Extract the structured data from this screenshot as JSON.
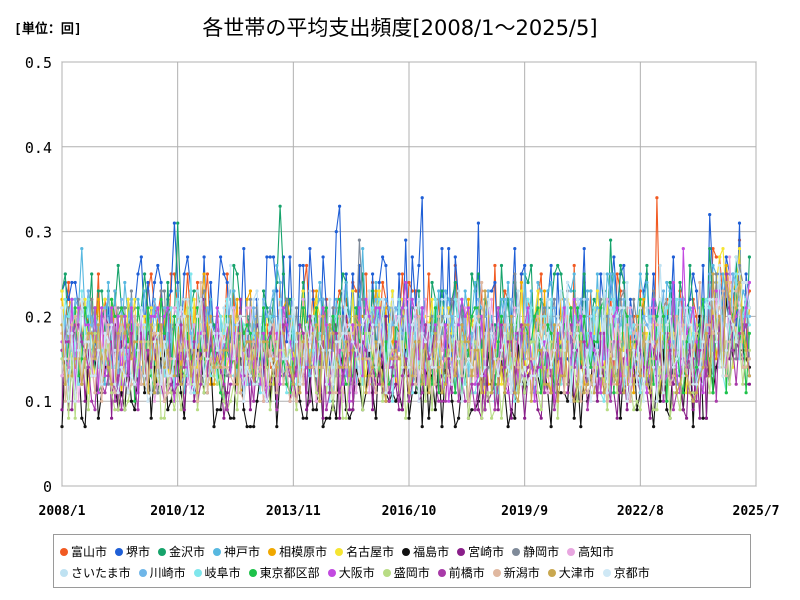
{
  "chart_data": {
    "type": "line",
    "title": "各世帯の平均支出頻度[2008/1～2025/5]",
    "unit_label": "[単位：回]",
    "x_range": [
      "2008/1",
      "2025/7"
    ],
    "x_tick_labels": [
      "2008/1",
      "2010/12",
      "2013/11",
      "2016/10",
      "2019/9",
      "2022/8",
      "2025/7"
    ],
    "y_ticks": [
      0,
      0.1,
      0.2,
      0.3,
      0.4,
      0.5
    ],
    "y_tick_labels": [
      "0",
      "0.1",
      "0.2",
      "0.3",
      "0.4",
      "0.5"
    ],
    "ylim": [
      0,
      0.5
    ],
    "grid": true,
    "legend_position": "bottom",
    "series": [
      {
        "name": "富山市",
        "color": "#f15a22",
        "base": 0.19,
        "amp": 0.07
      },
      {
        "name": "堺市",
        "color": "#1f5fd6",
        "base": 0.2,
        "amp": 0.08
      },
      {
        "name": "金沢市",
        "color": "#16a36b",
        "base": 0.19,
        "amp": 0.07
      },
      {
        "name": "神戸市",
        "color": "#57b8e0",
        "base": 0.18,
        "amp": 0.07
      },
      {
        "name": "相模原市",
        "color": "#f0a800",
        "base": 0.17,
        "amp": 0.06
      },
      {
        "name": "名古屋市",
        "color": "#f5e532",
        "base": 0.17,
        "amp": 0.06
      },
      {
        "name": "福島市",
        "color": "#111111",
        "base": 0.12,
        "amp": 0.05
      },
      {
        "name": "宮崎市",
        "color": "#8a1f8a",
        "base": 0.14,
        "amp": 0.06
      },
      {
        "name": "静岡市",
        "color": "#7f8a99",
        "base": 0.17,
        "amp": 0.06
      },
      {
        "name": "高知市",
        "color": "#e8a6e0",
        "base": 0.16,
        "amp": 0.06
      },
      {
        "name": "さいたま市",
        "color": "#bfe2f2",
        "base": 0.17,
        "amp": 0.06
      },
      {
        "name": "川崎市",
        "color": "#6fb6e8",
        "base": 0.17,
        "amp": 0.06
      },
      {
        "name": "岐阜市",
        "color": "#7fe6ec",
        "base": 0.16,
        "amp": 0.06
      },
      {
        "name": "東京都区部",
        "color": "#1ec24a",
        "base": 0.16,
        "amp": 0.06
      },
      {
        "name": "大阪市",
        "color": "#c24ae0",
        "base": 0.16,
        "amp": 0.06
      },
      {
        "name": "盛岡市",
        "color": "#b8dc84",
        "base": 0.13,
        "amp": 0.05
      },
      {
        "name": "前橋市",
        "color": "#a83aa8",
        "base": 0.14,
        "amp": 0.05
      },
      {
        "name": "新潟市",
        "color": "#e0b8a0",
        "base": 0.15,
        "amp": 0.05
      },
      {
        "name": "大津市",
        "color": "#c9a850",
        "base": 0.15,
        "amp": 0.05
      },
      {
        "name": "京都市",
        "color": "#cfe8f5",
        "base": 0.16,
        "amp": 0.06
      }
    ]
  }
}
